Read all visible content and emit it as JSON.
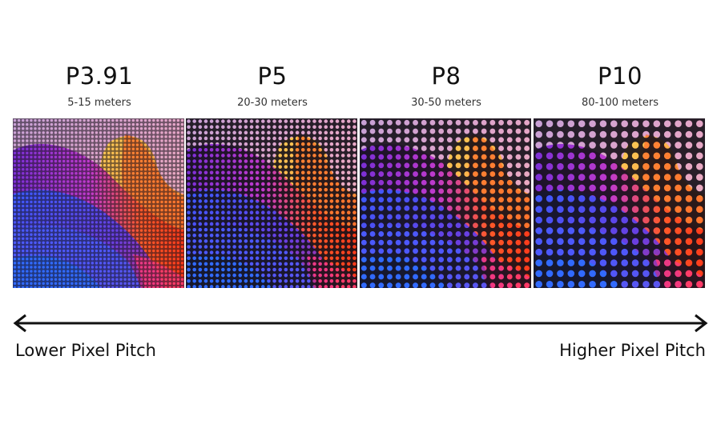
{
  "panels": [
    {
      "title": "P3.91",
      "distance": "5-15 meters",
      "dot_cells": 42
    },
    {
      "title": "P5",
      "distance": "20-30 meters",
      "dot_cells": 30
    },
    {
      "title": "P8",
      "distance": "30-50 meters",
      "dot_cells": 20
    },
    {
      "title": "P10",
      "distance": "80-100 meters",
      "dot_cells": 16
    }
  ],
  "axis": {
    "left_label": "Lower Pixel Pitch",
    "right_label": "Higher Pixel Pitch",
    "icon": "double-headed-arrow-icon"
  },
  "colors": {
    "arrow": "#111111",
    "grid_dark": "#141018"
  }
}
